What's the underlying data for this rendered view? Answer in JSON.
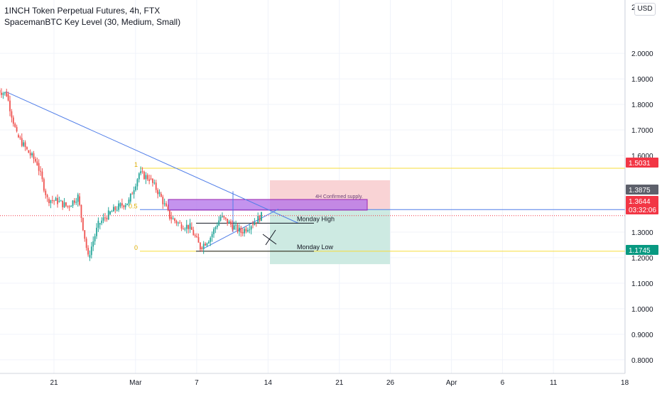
{
  "legend": {
    "title": "1INCH Token Perpetual Futures, 4h, FTX",
    "indicator": "SpacemanBTC Key Level (30, Medium, Small)"
  },
  "currency_button": "USD",
  "chart_data": {
    "type": "candlestick",
    "y_axis": {
      "range": [
        0.73,
        2.22
      ],
      "tick_labels": [
        "2.0000",
        "1.9000",
        "1.8000",
        "1.7000",
        "1.6000",
        "1.3000",
        "1.2000",
        "1.1000",
        "1.0000",
        "0.9000",
        "0.8000"
      ],
      "tick_values": [
        2.0,
        1.9,
        1.8,
        1.7,
        1.6,
        1.3,
        1.2,
        1.1,
        1.0,
        0.9,
        0.8
      ],
      "partial_top_label": "2."
    },
    "x_axis": {
      "tick_labels": [
        "21",
        "Mar",
        "7",
        "14",
        "21",
        "26",
        "Apr",
        "6",
        "11",
        "18"
      ],
      "tick_dates": [
        "2022-02-21",
        "2022-03-01",
        "2022-03-07",
        "2022-03-14",
        "2022-03-21",
        "2022-03-26",
        "2022-04-01",
        "2022-04-06",
        "2022-04-11",
        "2022-04-18"
      ]
    },
    "price_labels": [
      {
        "value": "1.5031",
        "color": "#f23645"
      },
      {
        "value": "1.3875",
        "color": "#5d606b"
      },
      {
        "value": "1.3644",
        "color": "#f23645",
        "countdown": "03:32:06"
      },
      {
        "value": "1.1745",
        "color": "#089981"
      }
    ],
    "candles_daily": [
      {
        "date": "2022-02-16",
        "close": 1.84
      },
      {
        "date": "2022-02-17",
        "close": 1.68
      },
      {
        "date": "2022-02-18",
        "close": 1.62
      },
      {
        "date": "2022-02-19",
        "close": 1.57
      },
      {
        "date": "2022-02-20",
        "close": 1.43
      },
      {
        "date": "2022-02-21",
        "close": 1.42
      },
      {
        "date": "2022-02-22",
        "close": 1.4
      },
      {
        "date": "2022-02-23",
        "close": 1.44
      },
      {
        "date": "2022-02-24",
        "close": 1.2
      },
      {
        "date": "2022-02-25",
        "close": 1.33
      },
      {
        "date": "2022-02-26",
        "close": 1.37
      },
      {
        "date": "2022-02-27",
        "close": 1.4
      },
      {
        "date": "2022-02-28",
        "close": 1.42
      },
      {
        "date": "2022-03-01",
        "close": 1.53
      },
      {
        "date": "2022-03-02",
        "close": 1.51
      },
      {
        "date": "2022-03-03",
        "close": 1.45
      },
      {
        "date": "2022-03-04",
        "close": 1.36
      },
      {
        "date": "2022-03-05",
        "close": 1.33
      },
      {
        "date": "2022-03-06",
        "close": 1.32
      },
      {
        "date": "2022-03-07",
        "close": 1.24
      },
      {
        "date": "2022-03-08",
        "close": 1.28
      },
      {
        "date": "2022-03-09",
        "close": 1.36
      },
      {
        "date": "2022-03-10",
        "close": 1.33
      },
      {
        "date": "2022-03-11",
        "close": 1.3
      },
      {
        "date": "2022-03-12",
        "close": 1.33
      },
      {
        "date": "2022-03-13",
        "close": 1.364
      }
    ],
    "annotations": {
      "supply_label": "4H Confirmed supply.",
      "monday_high_label": "Monday High",
      "monday_low_label": "Monday Low",
      "fib_1": "1",
      "fib_05": "0.5",
      "fib_0": "0",
      "supply_zone_price": [
        1.36,
        1.4
      ],
      "fib_levels": [
        1.55,
        1.388,
        1.225
      ],
      "monday_high": 1.335,
      "monday_low": 1.225,
      "position_entry": 1.39,
      "position_stop": 1.5031,
      "position_target": 1.1745,
      "colors": {
        "trendline": "#4f7de8",
        "fib_line": "#f7dc3a",
        "supply_zone": "#b06fe8",
        "loss_zone": "#f9d3d5",
        "profit_zone": "#cdeae2",
        "candle_up": "#26a69a",
        "candle_down": "#ef5350",
        "grid": "#f0f3fa"
      }
    }
  }
}
